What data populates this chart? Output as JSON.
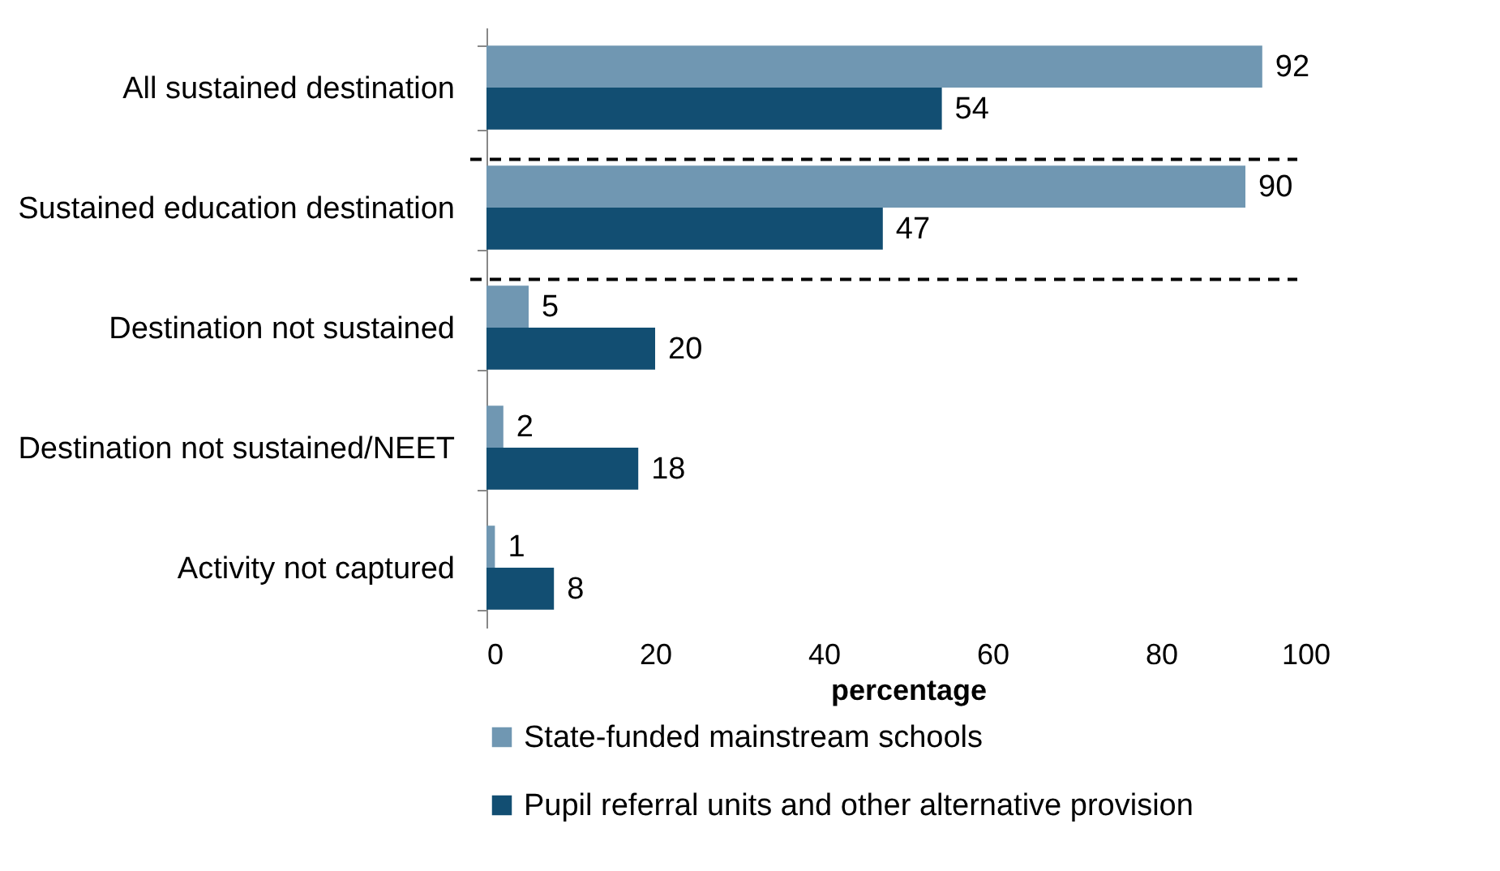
{
  "chart_data": {
    "type": "bar",
    "orientation": "horizontal",
    "xlabel": "percentage",
    "categories": [
      "All sustained destination",
      "Sustained education destination",
      "Destination not sustained",
      "Destination not sustained/NEET",
      "Activity not captured"
    ],
    "series": [
      {
        "name": "State-funded mainstream schools",
        "color": "#7097b2",
        "values": [
          92,
          90,
          5,
          2,
          1
        ]
      },
      {
        "name": "Pupil referral units and other alternative provision",
        "color": "#124e72",
        "values": [
          54,
          47,
          20,
          18,
          8
        ]
      }
    ],
    "xlim": [
      0,
      100
    ],
    "xticks": [
      0,
      20,
      40,
      60,
      80,
      100
    ],
    "grid": false,
    "legend": "bottom",
    "data_labels": true,
    "ref_lines": [
      {
        "axis": "y",
        "value": "Sustained education destination",
        "line_style": "dashed",
        "color": "#000000"
      },
      {
        "axis": "y",
        "value": "Destination not sustained",
        "line_style": "dashed",
        "color": "#000000"
      }
    ]
  }
}
